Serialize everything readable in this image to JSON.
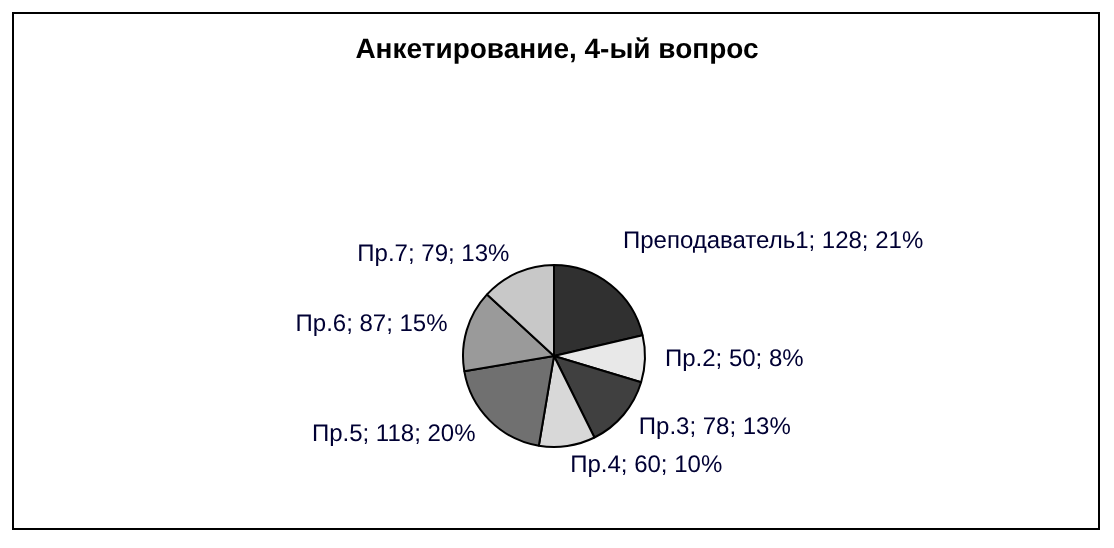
{
  "chart_data": {
    "type": "pie",
    "title": "Анкетирование, 4-ый вопрос",
    "categories": [
      "Преподаватель1",
      "Пр.2",
      "Пр.3",
      "Пр.4",
      "Пр.5",
      "Пр.6",
      "Пр.7"
    ],
    "values": [
      128,
      50,
      78,
      60,
      118,
      87,
      79
    ],
    "value_labels": [
      "128; 21%",
      "50; 8%",
      "78; 13%",
      "60; 10%",
      "118; 20%",
      "87; 15%",
      "79; 13%"
    ],
    "colors": [
      "#303030",
      "#e8e8e8",
      "#404040",
      "#d8d8d8",
      "#707070",
      "#9a9a9a",
      "#c8c8c8"
    ],
    "legend": false
  }
}
